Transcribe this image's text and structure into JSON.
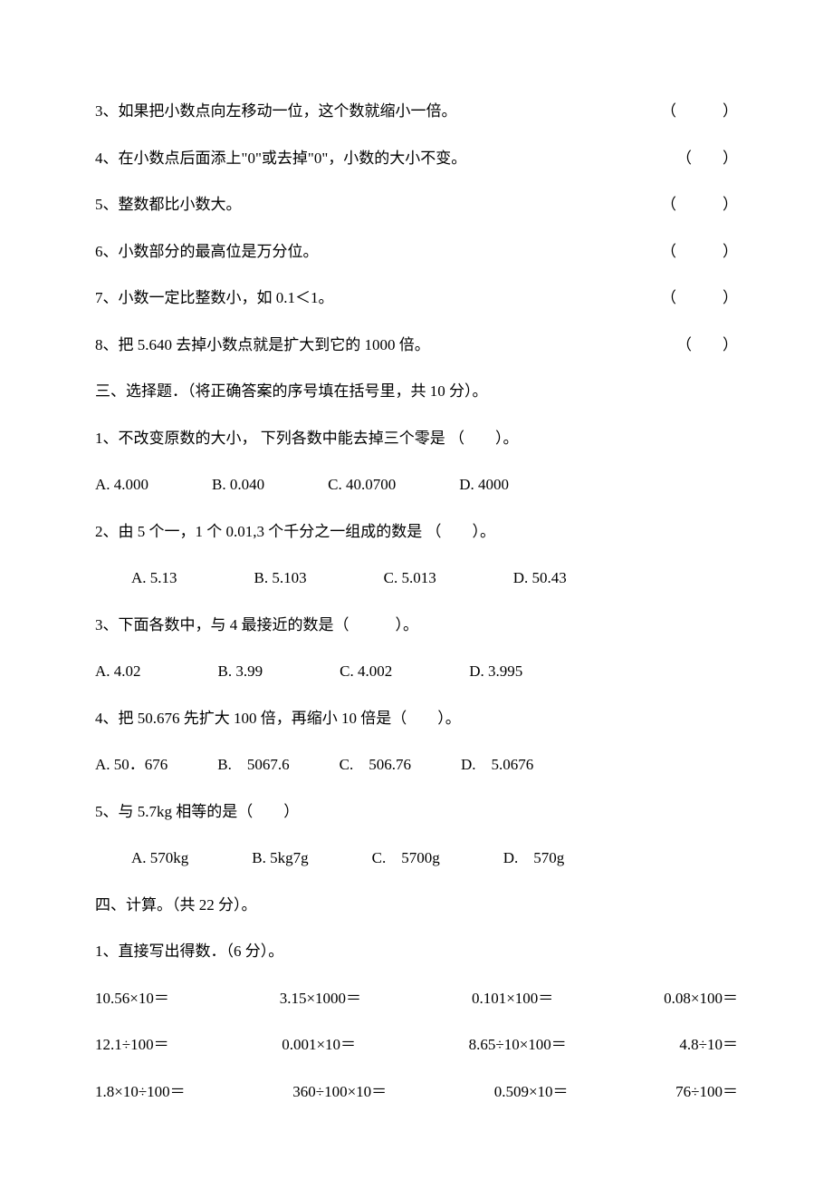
{
  "tf": {
    "q3": {
      "text": "3、如果把小数点向左移动一位，这个数就缩小一倍。",
      "paren": "（　　　）"
    },
    "q4": {
      "text": "4、在小数点后面添上\"0\"或去掉\"0\"，小数的大小不变。",
      "paren": "（　　）"
    },
    "q5": {
      "text": "5、整数都比小数大。",
      "paren": "（　　　）"
    },
    "q6": {
      "text": "6、小数部分的最高位是万分位。",
      "paren": "（　　　）"
    },
    "q7": {
      "text": "7、小数一定比整数小，如 0.1＜1。",
      "paren": "（　　　）"
    },
    "q8": {
      "text": "8、把 5.640 去掉小数点就是扩大到它的 1000 倍。",
      "paren": "（　　）"
    }
  },
  "section3": {
    "title": "三、选择题．（将正确答案的序号填在括号里，共 10 分）。",
    "q1": {
      "text": "1、不改变原数的大小， 下列各数中能去掉三个零是  （　　）。",
      "a": "A. 4.000",
      "b": "B. 0.040",
      "c": "C. 40.0700",
      "d": "D. 4000"
    },
    "q2": {
      "text": "2、由 5 个一，1 个 0.01,3 个千分之一组成的数是  （　　）。",
      "a": "A. 5.13",
      "b": "B. 5.103",
      "c": "C. 5.013",
      "d": "D. 50.43"
    },
    "q3": {
      "text": "3、下面各数中，与 4 最接近的数是（　　　）。",
      "a": "A. 4.02",
      "b": "B. 3.99",
      "c": "C. 4.002",
      "d": "D. 3.995"
    },
    "q4": {
      "text": "4、把 50.676 先扩大 100 倍，再缩小 10 倍是（　　）。",
      "a": "A. 50．676",
      "b": "B.　5067.6",
      "c": "C.　506.76",
      "d": "D.　5.0676"
    },
    "q5": {
      "text": "5、与 5.7kg 相等的是（　　）",
      "a": "A. 570kg",
      "b": "B. 5kg7g",
      "c": "C.　5700g",
      "d": "D.　570g"
    }
  },
  "section4": {
    "title": "四、计算。（共 22 分）。",
    "q1": {
      "text": "1、直接写出得数．（6 分）。",
      "row1": {
        "a": "10.56×10＝",
        "b": "3.15×1000＝",
        "c": "0.101×100＝",
        "d": "0.08×100＝"
      },
      "row2": {
        "a": "12.1÷100＝",
        "b": "0.001×10＝",
        "c": "8.65÷10×100＝",
        "d": "4.8÷10＝"
      },
      "row3": {
        "a": "1.8×10÷100＝",
        "b": "360÷100×10＝",
        "c": "0.509×10＝",
        "d": "76÷100＝"
      }
    }
  }
}
